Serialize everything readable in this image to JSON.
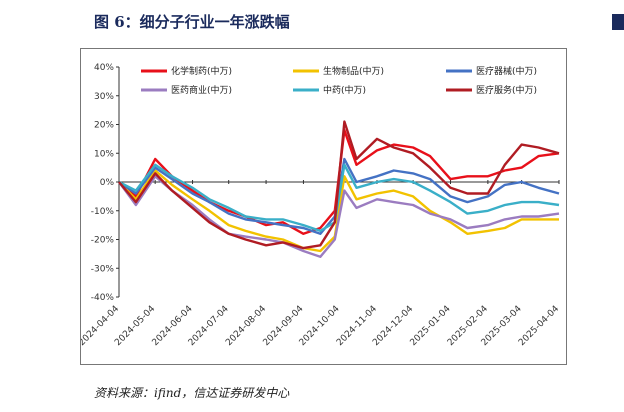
{
  "page": {
    "title": "图 6：细分子行业一年涨跌幅",
    "source": "资料来源：ifind，信达证券研发中心"
  },
  "chart_data": {
    "type": "line",
    "title": "",
    "xlabel": "",
    "ylabel": "",
    "ylim": [
      -0.4,
      0.4
    ],
    "yticks": [
      "40%",
      "30%",
      "20%",
      "10%",
      "0%",
      "-10%",
      "-20%",
      "-30%",
      "-40%"
    ],
    "y_tick_values": [
      0.4,
      0.3,
      0.2,
      0.1,
      0.0,
      -0.1,
      -0.2,
      -0.3,
      -0.4
    ],
    "xticks": [
      "2024-04-04",
      "2024-05-04",
      "2024-06-04",
      "2024-07-04",
      "2024-08-04",
      "2024-09-04",
      "2024-10-04",
      "2024-11-04",
      "2024-12-04",
      "2025-01-04",
      "2025-02-04",
      "2025-03-04",
      "2025-04-04"
    ],
    "x": [
      "2024-04-04",
      "2024-04-18",
      "2024-05-04",
      "2024-05-18",
      "2024-06-04",
      "2024-06-18",
      "2024-07-04",
      "2024-07-18",
      "2024-08-04",
      "2024-08-18",
      "2024-09-04",
      "2024-09-18",
      "2024-09-30",
      "2024-10-08",
      "2024-10-18",
      "2024-11-04",
      "2024-11-18",
      "2024-12-04",
      "2024-12-18",
      "2025-01-04",
      "2025-01-18",
      "2025-02-04",
      "2025-02-18",
      "2025-03-04",
      "2025-03-18",
      "2025-04-04"
    ],
    "grid": false,
    "legend_position": "top",
    "series": [
      {
        "name": "化学制药(中万)",
        "color": "#e8101a",
        "values": [
          0.0,
          -0.05,
          0.08,
          0.02,
          -0.03,
          -0.07,
          -0.1,
          -0.12,
          -0.15,
          -0.14,
          -0.18,
          -0.16,
          -0.1,
          0.18,
          0.06,
          0.11,
          0.13,
          0.12,
          0.09,
          0.01,
          0.02,
          0.02,
          0.04,
          0.05,
          0.09,
          0.1
        ]
      },
      {
        "name": "生物制品(中万)",
        "color": "#f2c200",
        "values": [
          0.0,
          -0.06,
          0.04,
          -0.01,
          -0.06,
          -0.1,
          -0.15,
          -0.17,
          -0.19,
          -0.2,
          -0.23,
          -0.24,
          -0.19,
          0.02,
          -0.06,
          -0.04,
          -0.03,
          -0.05,
          -0.1,
          -0.14,
          -0.18,
          -0.17,
          -0.16,
          -0.13,
          -0.13,
          -0.13
        ]
      },
      {
        "name": "医疗器械(中万)",
        "color": "#4472c4",
        "values": [
          0.0,
          -0.04,
          0.05,
          0.01,
          -0.04,
          -0.07,
          -0.11,
          -0.13,
          -0.14,
          -0.15,
          -0.16,
          -0.18,
          -0.12,
          0.08,
          0.0,
          0.02,
          0.04,
          0.03,
          0.01,
          -0.05,
          -0.07,
          -0.05,
          -0.01,
          0.0,
          -0.02,
          -0.04
        ]
      },
      {
        "name": "医药商业(中万)",
        "color": "#9b7cc0",
        "values": [
          0.0,
          -0.08,
          0.02,
          -0.03,
          -0.08,
          -0.13,
          -0.18,
          -0.19,
          -0.2,
          -0.21,
          -0.24,
          -0.26,
          -0.2,
          -0.03,
          -0.09,
          -0.06,
          -0.07,
          -0.08,
          -0.11,
          -0.13,
          -0.16,
          -0.15,
          -0.13,
          -0.12,
          -0.12,
          -0.11
        ]
      },
      {
        "name": "中药(中万)",
        "color": "#3aafc8",
        "values": [
          0.0,
          -0.03,
          0.06,
          0.02,
          -0.02,
          -0.06,
          -0.09,
          -0.12,
          -0.13,
          -0.13,
          -0.15,
          -0.17,
          -0.14,
          0.06,
          -0.02,
          0.0,
          0.01,
          0.0,
          -0.03,
          -0.07,
          -0.11,
          -0.1,
          -0.08,
          -0.07,
          -0.07,
          -0.08
        ]
      },
      {
        "name": "医疗服务(中万)",
        "color": "#b01c23",
        "values": [
          0.0,
          -0.07,
          0.03,
          -0.03,
          -0.09,
          -0.14,
          -0.18,
          -0.2,
          -0.22,
          -0.21,
          -0.23,
          -0.22,
          -0.14,
          0.21,
          0.08,
          0.15,
          0.12,
          0.1,
          0.05,
          -0.02,
          -0.04,
          -0.04,
          0.06,
          0.13,
          0.12,
          0.1
        ]
      }
    ]
  }
}
